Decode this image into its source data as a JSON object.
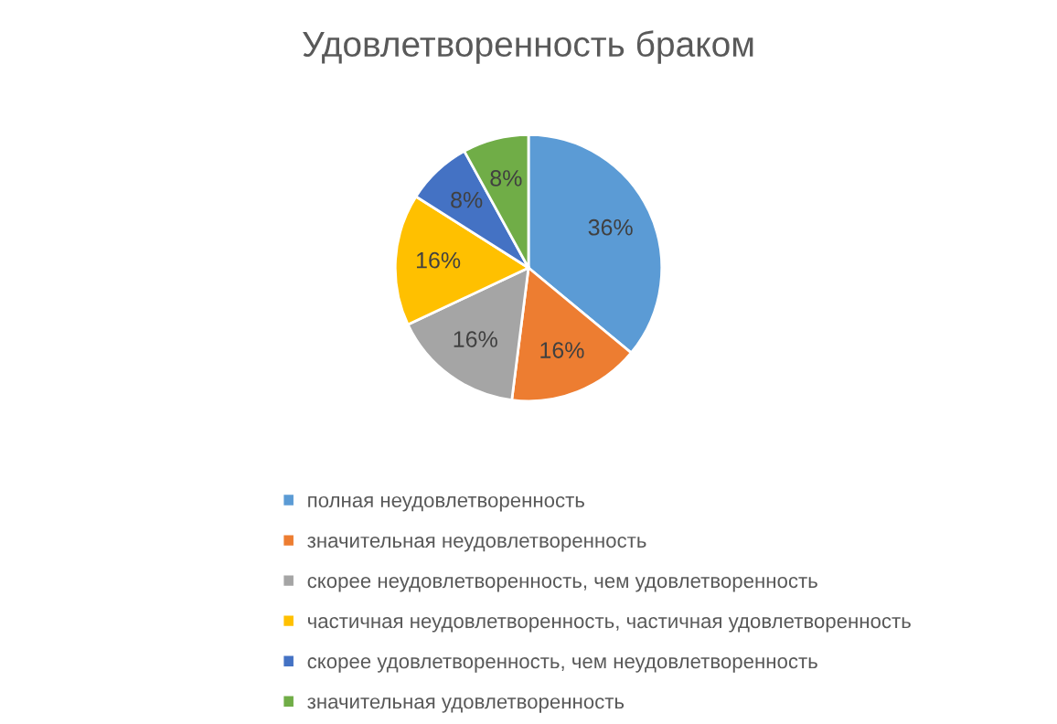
{
  "chart_data": {
    "type": "pie",
    "title": "Удовлетворенность браком",
    "categories": [
      "полная неудовлетворенность",
      "значительная неудовлетворенность",
      "скорее неудовлетворенность, чем удовлетворенность",
      "частичная неудовлетворенность, частичная удовлетворенность",
      "скорее удовлетворенность, чем неудовлетворенность",
      "значительная удовлетворенность"
    ],
    "values": [
      36,
      16,
      16,
      16,
      8,
      8
    ],
    "value_labels": [
      "36%",
      "16%",
      "16%",
      "16%",
      "8%",
      "8%"
    ],
    "colors": [
      "#5b9bd5",
      "#ed7d31",
      "#a5a5a5",
      "#ffc000",
      "#4472c4",
      "#70ad47"
    ],
    "legend": "bottom"
  }
}
